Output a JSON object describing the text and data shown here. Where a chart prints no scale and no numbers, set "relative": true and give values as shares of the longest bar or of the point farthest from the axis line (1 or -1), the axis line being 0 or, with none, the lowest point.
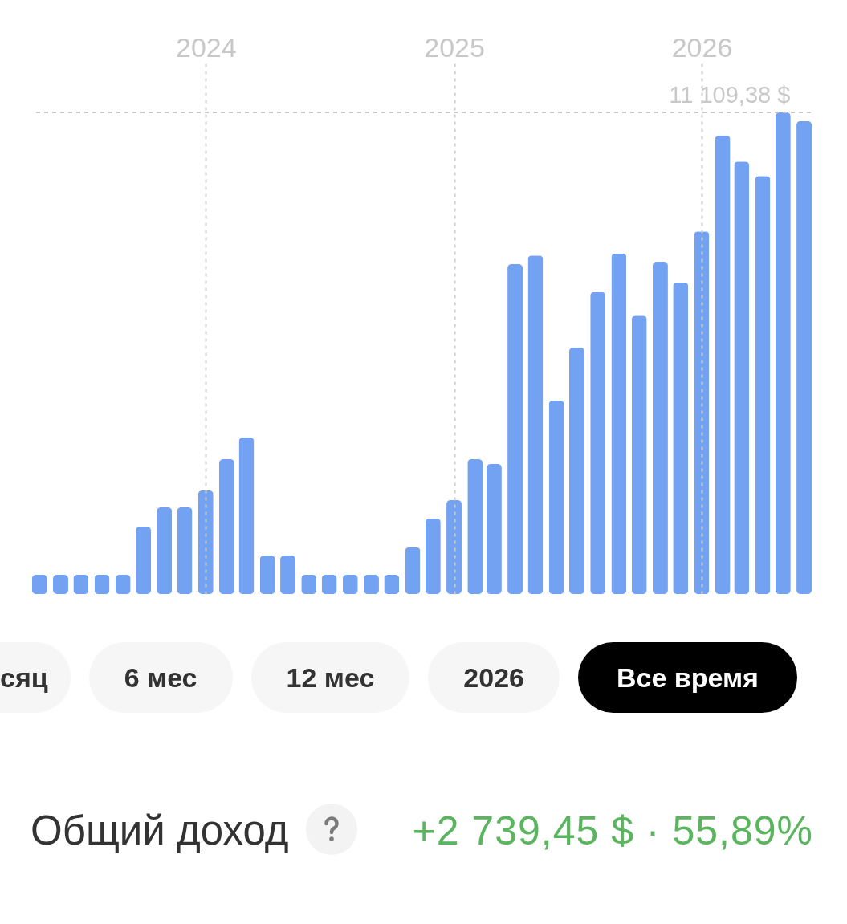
{
  "chart_data": {
    "type": "bar",
    "relative": true,
    "x": [
      "2023-05",
      "2023-06",
      "2023-07",
      "2023-08",
      "2023-09",
      "2023-10",
      "2023-11",
      "2023-12",
      "2024-01",
      "2024-02",
      "2024-03",
      "2024-04",
      "2024-05",
      "2024-06",
      "2024-07",
      "2024-08",
      "2024-09",
      "2024-10",
      "2024-11",
      "2024-12",
      "2025-01",
      "2025-02",
      "2025-03",
      "2025-04",
      "2025-05",
      "2025-06",
      "2025-07",
      "2025-08",
      "2025-09",
      "2025-10",
      "2025-11",
      "2025-12",
      "2026-01",
      "2026-02",
      "2026-03",
      "2026-04",
      "2026-05",
      "2026-06"
    ],
    "values": [
      0.04,
      0.04,
      0.04,
      0.04,
      0.04,
      0.14,
      0.18,
      0.18,
      0.215,
      0.28,
      0.325,
      0.08,
      0.08,
      0.04,
      0.04,
      0.04,
      0.04,
      0.04,
      0.097,
      0.157,
      0.195,
      0.28,
      0.27,
      0.685,
      0.703,
      0.402,
      0.512,
      0.627,
      0.707,
      0.578,
      0.69,
      0.647,
      0.753,
      0.952,
      0.898,
      0.868,
      1,
      0.982
    ],
    "color": "#74a2f3",
    "xlim": [
      "2023-04-20",
      "2026-06-11"
    ],
    "xticks": [
      "2024",
      "2025",
      "2026"
    ],
    "tick_labels": "x",
    "grid": "x",
    "ref_lines": [
      {
        "axis": "y",
        "value": 1,
        "color": "#c8c8c8",
        "line_style": "dashed"
      }
    ],
    "annotations": [
      {
        "text": "11 109,38 $",
        "x": "2026-05",
        "y": 1
      },
      "сяц",
      "6 мес",
      "12 мес",
      "2026",
      "Все время",
      "Общий доход",
      "+2 739,45 $ · 55,89%"
    ]
  }
}
